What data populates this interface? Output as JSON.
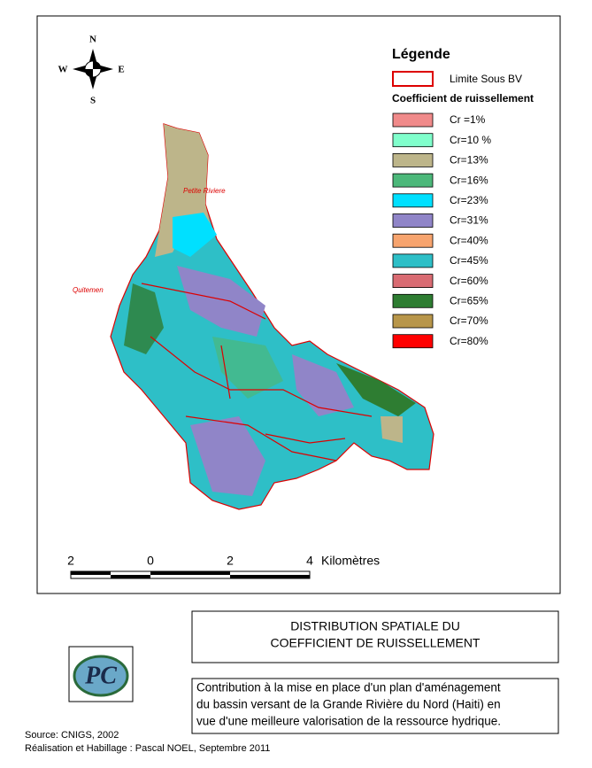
{
  "compass": {
    "north": "N",
    "south": "S",
    "east": "E",
    "west": "W"
  },
  "legend": {
    "title": "Légende",
    "boundary": "Limite Sous BV",
    "subtitle": "Coefficient de ruissellement",
    "items": [
      {
        "label": "Cr =1%",
        "color": "#f08a8a"
      },
      {
        "label": "Cr=10 %",
        "color": "#80ffcc"
      },
      {
        "label": "Cr=13%",
        "color": "#bdb58a"
      },
      {
        "label": "Cr=16%",
        "color": "#4cb87a"
      },
      {
        "label": "Cr=23%",
        "color": "#00e0ff"
      },
      {
        "label": "Cr=31%",
        "color": "#9085c8"
      },
      {
        "label": "Cr=40%",
        "color": "#f7a46e"
      },
      {
        "label": "Cr=45%",
        "color": "#2ebfc7"
      },
      {
        "label": "Cr=60%",
        "color": "#d96b72"
      },
      {
        "label": "Cr=65%",
        "color": "#2e7d32"
      },
      {
        "label": "Cr=70%",
        "color": "#b8964a"
      },
      {
        "label": "Cr=80%",
        "color": "#ff0000"
      }
    ]
  },
  "places": [
    "Petite Riviere",
    "Quitemen"
  ],
  "scale": {
    "labels": [
      "2",
      "0",
      "2",
      "4"
    ],
    "unit": "Kilomètres"
  },
  "title": [
    "DISTRIBUTION SPATIALE DU",
    "COEFFICIENT DE RUISSELLEMENT"
  ],
  "logo": "PC",
  "description": [
    "Contribution à  la mise en place d'un plan d'aménagement",
    "du bassin versant de la Grande Rivière du Nord (Haiti) en",
    "vue d'une meilleure valorisation de la ressource hydrique."
  ],
  "footer": [
    "Source: CNIGS, 2002",
    "Réalisation et Habillage : Pascal NOEL, Septembre 2011"
  ]
}
